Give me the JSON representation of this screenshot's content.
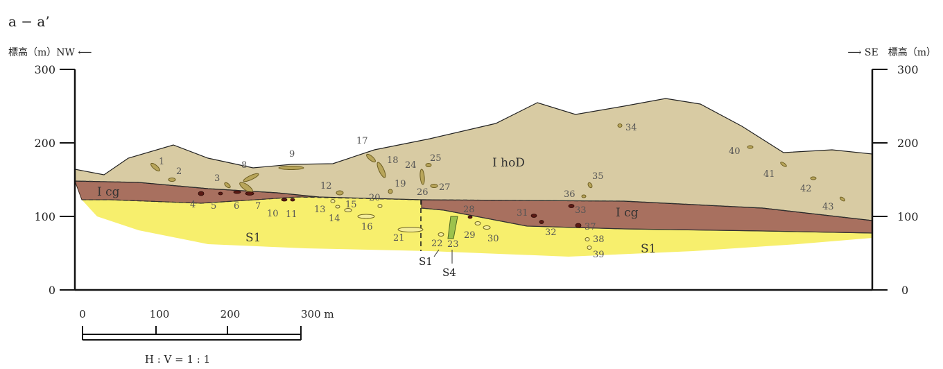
{
  "section_title": "a − a’",
  "left_axis_title": "標高（m）NW ⟵",
  "right_axis_title": "⟶ SE　標高（m）",
  "y_ticks": [
    "300",
    "200",
    "100",
    "0"
  ],
  "units": {
    "hod": "Ⅰ hoD",
    "cg_left": "Ⅰ cg",
    "cg_right": "Ⅰ cg",
    "s1_left": "S1",
    "s1_right": "S1",
    "s1_bottom": "S1",
    "s4_bottom": "S4"
  },
  "sample_numbers": [
    "1",
    "2",
    "3",
    "4",
    "5",
    "6",
    "7",
    "8",
    "9",
    "10",
    "11",
    "12",
    "13",
    "14",
    "15",
    "16",
    "17",
    "18",
    "19",
    "20",
    "21",
    "22",
    "23",
    "24",
    "25",
    "26",
    "27",
    "28",
    "29",
    "30",
    "31",
    "32",
    "33",
    "34",
    "35",
    "36",
    "37",
    "38",
    "39",
    "40",
    "41",
    "42",
    "43"
  ],
  "scale_bar": {
    "labels": [
      "0",
      "100",
      "200",
      "300 m"
    ],
    "ratio": "H : V = 1 : 1"
  },
  "colors": {
    "hod": "#d8cba3",
    "cg": "#a8705f",
    "s1": "#f7ef6d",
    "s4": "#9cc24d"
  }
}
